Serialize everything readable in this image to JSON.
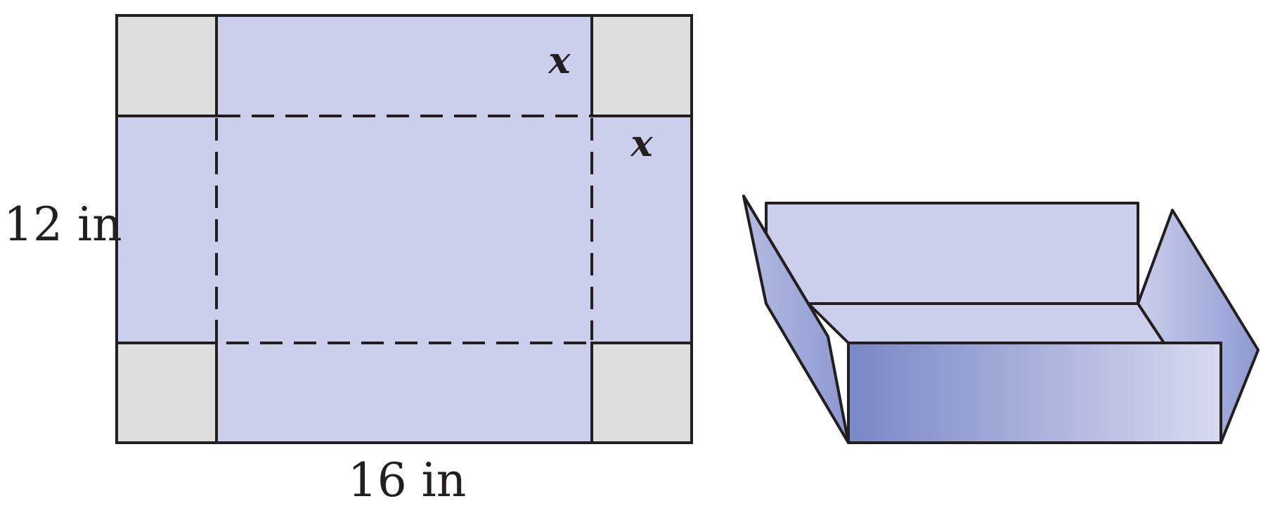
{
  "net": {
    "height_label": "12 in",
    "width_label": "16 in",
    "cut_label_top": "x",
    "cut_label_side": "x"
  },
  "colors": {
    "sheet": "#cbcfeb",
    "corner": "#dedede",
    "outline": "#231f20",
    "gradient_dark": "#7a87c7",
    "gradient_light": "#d8daf0"
  }
}
